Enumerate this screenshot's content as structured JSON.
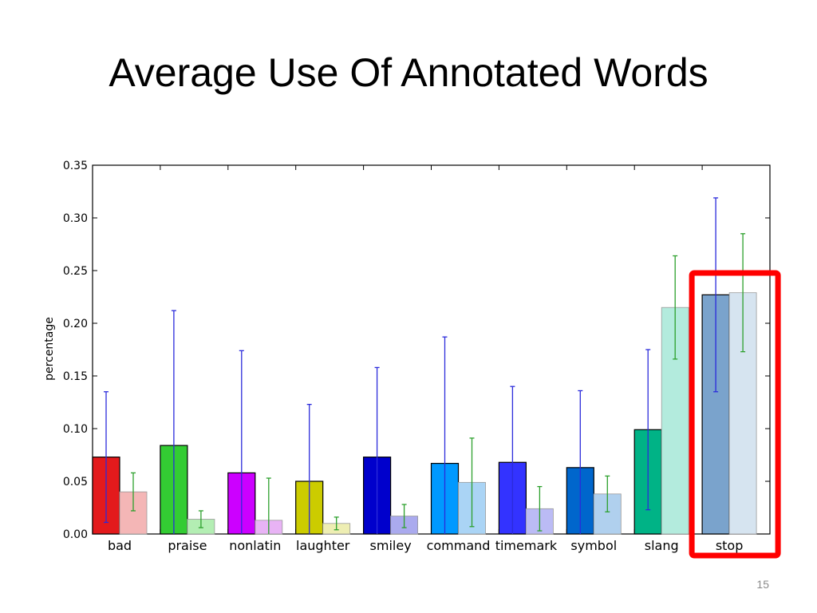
{
  "slide": {
    "title": "Average Use Of Annotated Words",
    "page_number": "15"
  },
  "chart_data": {
    "type": "bar",
    "title": "",
    "xlabel": "",
    "ylabel": "percentage",
    "ylim": [
      0,
      0.35
    ],
    "yticks": [
      "0.00",
      "0.05",
      "0.10",
      "0.15",
      "0.20",
      "0.25",
      "0.30",
      "0.35"
    ],
    "grid": false,
    "categories": [
      "bad",
      "praise",
      "nonlatin",
      "laughter",
      "smiley",
      "command",
      "timemark",
      "symbol",
      "slang",
      "stop"
    ],
    "series": [
      {
        "values": [
          0.073,
          0.084,
          0.058,
          0.05,
          0.073,
          0.067,
          0.068,
          0.063,
          0.099,
          0.227
        ],
        "error": [
          0.062,
          0.128,
          0.116,
          0.073,
          0.085,
          0.12,
          0.072,
          0.073,
          0.076,
          0.092
        ],
        "colors": [
          "#e31a1c",
          "#33cc33",
          "#cc00ff",
          "#cccc00",
          "#0000cc",
          "#0099ff",
          "#3333ff",
          "#0066cc",
          "#00b386",
          "#7aa3cc"
        ],
        "error_color": "#2b2bdb"
      },
      {
        "values": [
          0.04,
          0.014,
          0.013,
          0.01,
          0.017,
          0.049,
          0.024,
          0.038,
          0.215,
          0.229
        ],
        "error": [
          0.018,
          0.008,
          0.04,
          0.006,
          0.011,
          0.042,
          0.021,
          0.017,
          0.049,
          0.056
        ],
        "colors": [
          "#f4b6b6",
          "#b3eeb3",
          "#e8b3f5",
          "#eeeeb3",
          "#aaaaee",
          "#aad4f5",
          "#bbbbf5",
          "#b0d0ee",
          "#b3ebdd",
          "#d6e4f0"
        ],
        "error_color": "#2ca02c"
      }
    ],
    "highlight": {
      "category": "stop",
      "color": "#ff0000"
    }
  }
}
